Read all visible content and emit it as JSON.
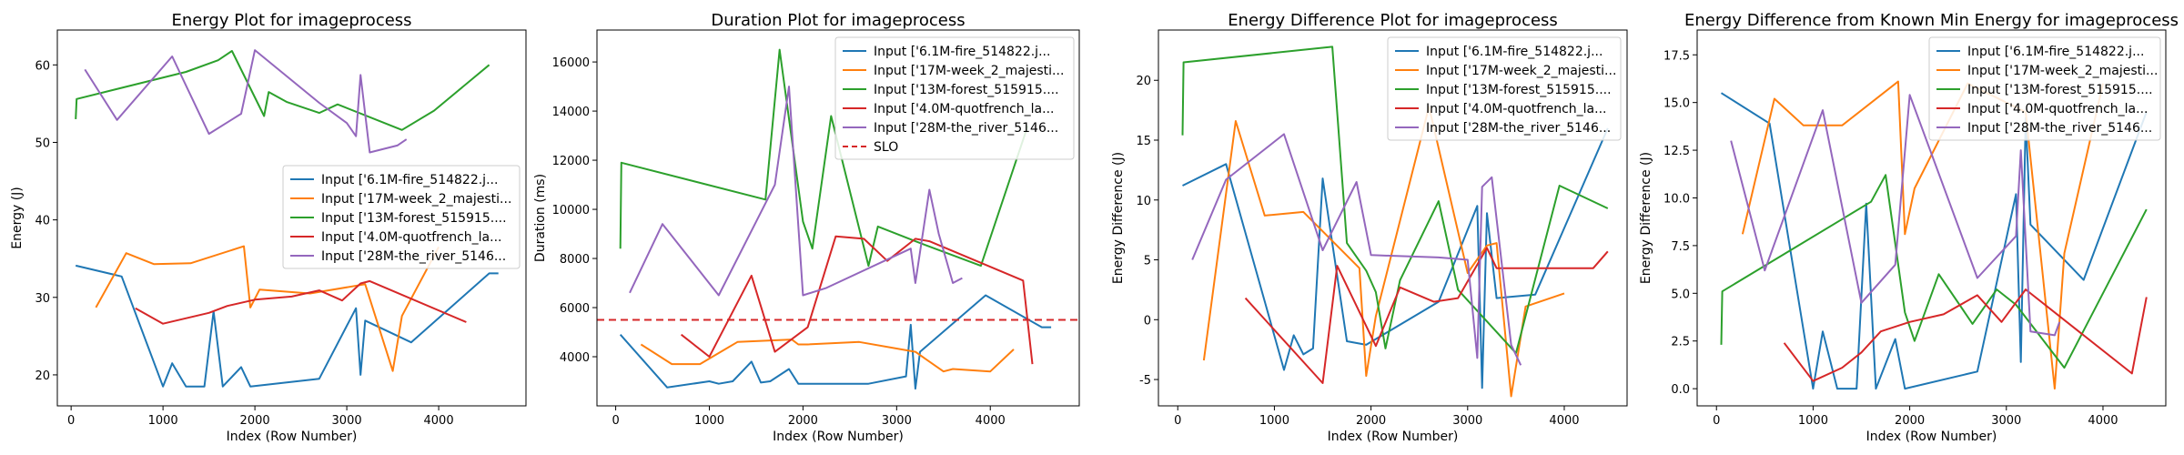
{
  "colors": {
    "series": [
      "#1f77b4",
      "#ff7f0e",
      "#2ca02c",
      "#d62728",
      "#9467bd"
    ],
    "slo": "#d62728"
  },
  "chart_data": [
    {
      "type": "line",
      "title": "Energy Plot for imageprocess",
      "xlabel": "Index (Row Number)",
      "ylabel": "Energy (J)",
      "xlim": [
        -150,
        4950
      ],
      "ylim": [
        16,
        64.5
      ],
      "xticks": [
        0,
        1000,
        2000,
        3000,
        4000
      ],
      "yticks": [
        20,
        30,
        40,
        50,
        60
      ],
      "legend": "right",
      "series": [
        {
          "name": "Input ['6.1M-fire_514822.j...",
          "x": [
            50,
            550,
            1000,
            1100,
            1250,
            1450,
            1550,
            1650,
            1850,
            1950,
            2700,
            3100,
            3150,
            3200,
            3700,
            4550,
            4650
          ],
          "y": [
            34.1,
            32.7,
            18.5,
            21.5,
            18.5,
            18.5,
            28.2,
            18.5,
            21.0,
            18.5,
            19.5,
            28.6,
            20.0,
            27.0,
            24.2,
            33.1,
            33.1
          ]
        },
        {
          "name": "Input ['17M-week_2_majesti...",
          "x": [
            270,
            600,
            900,
            1300,
            1880,
            1950,
            2050,
            2600,
            3200,
            3500,
            3600,
            4000
          ],
          "y": [
            28.7,
            35.7,
            34.3,
            34.4,
            36.6,
            28.7,
            31.0,
            30.5,
            31.7,
            20.5,
            27.6,
            36.5
          ]
        },
        {
          "name": "Input ['13M-forest_515915....",
          "x": [
            50,
            60,
            1250,
            1600,
            1750,
            2100,
            2150,
            2350,
            2700,
            2900,
            3600,
            3950,
            4550
          ],
          "y": [
            53.0,
            55.6,
            59.1,
            60.6,
            61.8,
            53.4,
            56.5,
            55.2,
            53.8,
            54.9,
            51.6,
            54.1,
            60.0
          ]
        },
        {
          "name": "Input ['4.0M-quotfrench_la...",
          "x": [
            700,
            1000,
            1500,
            1700,
            2000,
            2400,
            2700,
            2950,
            3150,
            3250,
            4300
          ],
          "y": [
            28.6,
            26.6,
            28.0,
            28.9,
            29.7,
            30.1,
            30.9,
            29.6,
            31.8,
            32.1,
            26.8
          ]
        },
        {
          "name": "Input ['28M-the_river_5146...",
          "x": [
            150,
            500,
            1100,
            1500,
            1850,
            2000,
            2700,
            3000,
            3100,
            3150,
            3250,
            3550,
            3650
          ],
          "y": [
            59.4,
            52.9,
            61.1,
            51.1,
            53.7,
            61.9,
            55.1,
            52.5,
            50.8,
            58.7,
            48.7,
            49.6,
            50.4
          ]
        }
      ]
    },
    {
      "type": "line",
      "title": "Duration Plot for imageprocess",
      "xlabel": "Index (Row Number)",
      "ylabel": "Duration (ms)",
      "xlim": [
        -200,
        4950
      ],
      "ylim": [
        2000,
        17300
      ],
      "xticks": [
        0,
        1000,
        2000,
        3000,
        4000
      ],
      "yticks": [
        4000,
        6000,
        8000,
        10000,
        12000,
        14000,
        16000
      ],
      "legend": "top-right",
      "slo": {
        "label": "SLO",
        "value": 5500
      },
      "series": [
        {
          "name": "Input ['6.1M-fire_514822.j...",
          "x": [
            50,
            550,
            1000,
            1100,
            1250,
            1450,
            1550,
            1650,
            1850,
            1950,
            2700,
            3100,
            3150,
            3200,
            3250,
            3950,
            4550,
            4650
          ],
          "y": [
            4900,
            2750,
            3000,
            2900,
            3000,
            3800,
            2950,
            3000,
            3500,
            2900,
            2900,
            3200,
            5300,
            2700,
            4200,
            6500,
            5200,
            5200
          ]
        },
        {
          "name": "Input ['17M-week_2_majesti...",
          "x": [
            270,
            600,
            900,
            1300,
            1880,
            1950,
            2050,
            2600,
            3200,
            3500,
            3600,
            4000,
            4250
          ],
          "y": [
            4500,
            3700,
            3700,
            4600,
            4700,
            4500,
            4500,
            4600,
            4200,
            3400,
            3500,
            3400,
            4300
          ]
        },
        {
          "name": "Input ['13M-forest_515915....",
          "x": [
            50,
            60,
            1600,
            1750,
            2000,
            2100,
            2300,
            2700,
            2800,
            3200,
            3900,
            4400
          ],
          "y": [
            8400,
            11900,
            10400,
            16500,
            9500,
            8400,
            13800,
            7700,
            9300,
            8700,
            7700,
            13400
          ]
        },
        {
          "name": "Input ['4.0M-quotfrench_la...",
          "x": [
            700,
            1000,
            1450,
            1700,
            2050,
            2350,
            2650,
            2900,
            3200,
            3350,
            4350,
            4450
          ],
          "y": [
            4900,
            4000,
            7300,
            4200,
            5200,
            8900,
            8800,
            7900,
            8800,
            8700,
            7100,
            3700
          ]
        },
        {
          "name": "Input ['28M-the_river_5146...",
          "x": [
            150,
            500,
            1100,
            1700,
            1850,
            2000,
            2250,
            3150,
            3200,
            3350,
            3450,
            3600,
            3700
          ],
          "y": [
            6600,
            9400,
            6500,
            11000,
            15000,
            6500,
            6800,
            8400,
            7000,
            10800,
            9000,
            7000,
            7200
          ]
        }
      ]
    },
    {
      "type": "line",
      "title": "Energy Difference Plot for imageprocess",
      "xlabel": "Index (Row Number)",
      "ylabel": "Energy Difference (J)",
      "xlim": [
        -200,
        4650
      ],
      "ylim": [
        -7.2,
        24.2
      ],
      "xticks": [
        0,
        1000,
        2000,
        3000,
        4000
      ],
      "yticks": [
        -5,
        0,
        5,
        10,
        15,
        20
      ],
      "legend": "top-right",
      "series": [
        {
          "name": "Input ['6.1M-fire_514822.j...",
          "x": [
            50,
            500,
            1100,
            1200,
            1300,
            1400,
            1500,
            1750,
            1950,
            2700,
            3100,
            3150,
            3200,
            3300,
            3700,
            4450
          ],
          "y": [
            11.2,
            13.0,
            -4.2,
            -1.3,
            -2.9,
            -2.4,
            11.8,
            -1.8,
            -2.1,
            1.5,
            9.5,
            -5.7,
            8.9,
            1.8,
            2.1,
            16.0
          ]
        },
        {
          "name": "Input ['17M-week_2_majesti...",
          "x": [
            270,
            600,
            900,
            1300,
            1880,
            1950,
            2050,
            2600,
            3000,
            3200,
            3300,
            3450,
            3600,
            4000
          ],
          "y": [
            -3.4,
            16.6,
            8.7,
            9.0,
            4.3,
            -4.7,
            0.3,
            17.8,
            3.9,
            6.2,
            6.4,
            -6.4,
            1.1,
            2.2
          ]
        },
        {
          "name": "Input ['13M-forest_515915....",
          "x": [
            50,
            60,
            1600,
            1750,
            1950,
            2050,
            2150,
            2300,
            2700,
            2900,
            3500,
            3950,
            4450
          ],
          "y": [
            15.4,
            21.5,
            22.8,
            6.4,
            4.1,
            2.3,
            -2.4,
            3.3,
            9.9,
            2.5,
            -2.8,
            11.2,
            9.3
          ]
        },
        {
          "name": "Input ['4.0M-quotfrench_la...",
          "x": [
            700,
            1050,
            1500,
            1650,
            2050,
            2300,
            2650,
            2900,
            3200,
            3300,
            3550,
            4300,
            4450
          ],
          "y": [
            1.8,
            -1.3,
            -5.3,
            4.5,
            -2.2,
            2.7,
            1.5,
            1.8,
            6.0,
            4.3,
            4.3,
            4.3,
            5.7
          ]
        },
        {
          "name": "Input ['28M-the_river_5146...",
          "x": [
            150,
            500,
            1100,
            1500,
            1850,
            2000,
            2700,
            3000,
            3100,
            3150,
            3250,
            3450,
            3550
          ],
          "y": [
            5.0,
            11.7,
            15.5,
            5.8,
            11.5,
            5.4,
            5.2,
            5.0,
            -3.2,
            11.1,
            11.9,
            -2.1,
            -3.8
          ]
        }
      ]
    },
    {
      "type": "line",
      "title": "Energy Difference from Known Min Energy for imageprocess",
      "xlabel": "Index (Row Number)",
      "ylabel": "Energy Difference (J)",
      "xlim": [
        -200,
        4650
      ],
      "ylim": [
        -0.9,
        18.8
      ],
      "xticks": [
        0,
        1000,
        2000,
        3000,
        4000
      ],
      "yticks": [
        0.0,
        2.5,
        5.0,
        7.5,
        10.0,
        12.5,
        15.0,
        17.5
      ],
      "legend": "top-right",
      "series": [
        {
          "name": "Input ['6.1M-fire_514822.j...",
          "x": [
            50,
            550,
            1000,
            1100,
            1250,
            1450,
            1550,
            1650,
            1850,
            1950,
            2700,
            3100,
            3150,
            3200,
            3250,
            3800,
            4450
          ],
          "y": [
            15.5,
            13.9,
            0.0,
            3.0,
            0.0,
            0.0,
            9.7,
            0.0,
            2.6,
            0.0,
            0.9,
            10.2,
            1.4,
            14.2,
            8.6,
            5.7,
            14.5
          ]
        },
        {
          "name": "Input ['17M-week_2_majesti...",
          "x": [
            270,
            600,
            900,
            1300,
            1880,
            1950,
            2050,
            2600,
            3200,
            3500,
            3600,
            4000
          ],
          "y": [
            8.1,
            15.2,
            13.8,
            13.8,
            16.1,
            8.1,
            10.5,
            16.0,
            14.5,
            0.0,
            7.1,
            16.0
          ]
        },
        {
          "name": "Input ['13M-forest_515915....",
          "x": [
            50,
            60,
            1600,
            1750,
            1950,
            2050,
            2300,
            2650,
            2900,
            3100,
            3600,
            4450
          ],
          "y": [
            2.3,
            5.1,
            9.8,
            11.2,
            4.0,
            2.5,
            6.0,
            3.4,
            5.2,
            4.4,
            1.1,
            9.4
          ]
        },
        {
          "name": "Input ['4.0M-quotfrench_la...",
          "x": [
            700,
            1000,
            1300,
            1500,
            1700,
            2000,
            2350,
            2700,
            2950,
            3200,
            4300,
            4450
          ],
          "y": [
            2.4,
            0.4,
            1.1,
            1.9,
            3.0,
            3.5,
            3.9,
            4.9,
            3.5,
            5.2,
            0.8,
            4.8
          ]
        },
        {
          "name": "Input ['28M-the_river_5146...",
          "x": [
            150,
            500,
            1100,
            1500,
            1850,
            2000,
            2700,
            3100,
            3150,
            3250,
            3500,
            3550
          ],
          "y": [
            13.0,
            6.2,
            14.6,
            4.5,
            6.5,
            15.4,
            5.8,
            8.0,
            12.5,
            3.0,
            2.8,
            3.5
          ]
        }
      ]
    }
  ]
}
